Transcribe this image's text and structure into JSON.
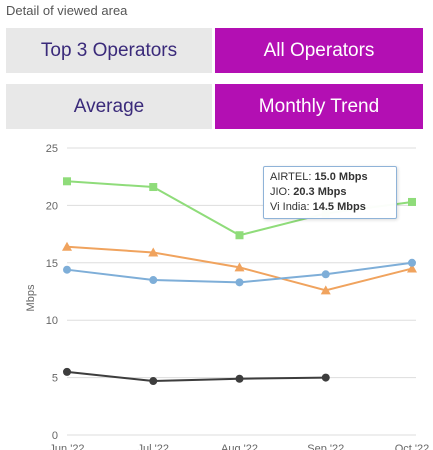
{
  "caption": "Detail of viewed area",
  "toggles": {
    "top3": "Top 3 Operators",
    "all": "All Operators",
    "average": "Average",
    "trend": "Monthly Trend"
  },
  "colors": {
    "active": "#b30fb3",
    "inactive": "#e8e8e8",
    "inactive_text": "#3a2a7a"
  },
  "tooltip": {
    "rows": [
      {
        "name": "AIRTEL",
        "value": "15.0 Mbps"
      },
      {
        "name": "JIO",
        "value": "20.3 Mbps"
      },
      {
        "name": "Vi India",
        "value": "14.5 Mbps"
      }
    ]
  },
  "chart_data": {
    "type": "line",
    "ylabel": "Mbps",
    "ylim": [
      0,
      25
    ],
    "yticks": [
      0,
      5,
      10,
      15,
      20,
      25
    ],
    "categories": [
      "Jun '22",
      "Jul '22",
      "Aug '22",
      "Sep '22",
      "Oct '22"
    ],
    "grid": true,
    "series": [
      {
        "color": "#8fdc7a",
        "marker": "square",
        "values": [
          22.1,
          21.6,
          17.4,
          19.3,
          20.3
        ]
      },
      {
        "color": "#f0a35e",
        "marker": "triangle",
        "values": [
          16.4,
          15.9,
          14.6,
          12.6,
          14.5
        ]
      },
      {
        "color": "#7eaed8",
        "marker": "circle",
        "values": [
          14.4,
          13.5,
          13.3,
          14.0,
          15.0
        ]
      },
      {
        "color": "#3d3d3d",
        "marker": "circle",
        "values": [
          5.5,
          4.7,
          4.9,
          5.0,
          null
        ]
      }
    ]
  }
}
